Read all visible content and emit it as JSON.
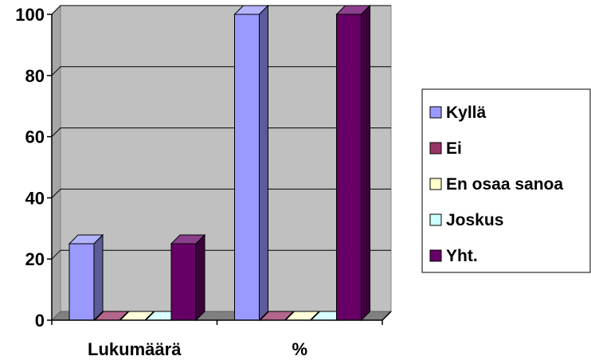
{
  "chart_data": {
    "type": "bar",
    "categories": [
      "Lukumäärä",
      "%"
    ],
    "series": [
      {
        "name": "Kyllä",
        "values": [
          25,
          100
        ],
        "color": "#9999ff"
      },
      {
        "name": "Ei",
        "values": [
          0,
          0
        ],
        "color": "#993366"
      },
      {
        "name": "En osaa sanoa",
        "values": [
          0,
          0
        ],
        "color": "#ffffcc"
      },
      {
        "name": "Joskus",
        "values": [
          0,
          0
        ],
        "color": "#ccffff"
      },
      {
        "name": "Yht.",
        "values": [
          25,
          100
        ],
        "color": "#660066"
      }
    ],
    "ylim": [
      0,
      100
    ],
    "yticks": [
      "0",
      "20",
      "40",
      "60",
      "80",
      "100"
    ],
    "grid": true,
    "plot_background": "#c0c0c0",
    "legend_position": "right",
    "style": "3d"
  }
}
